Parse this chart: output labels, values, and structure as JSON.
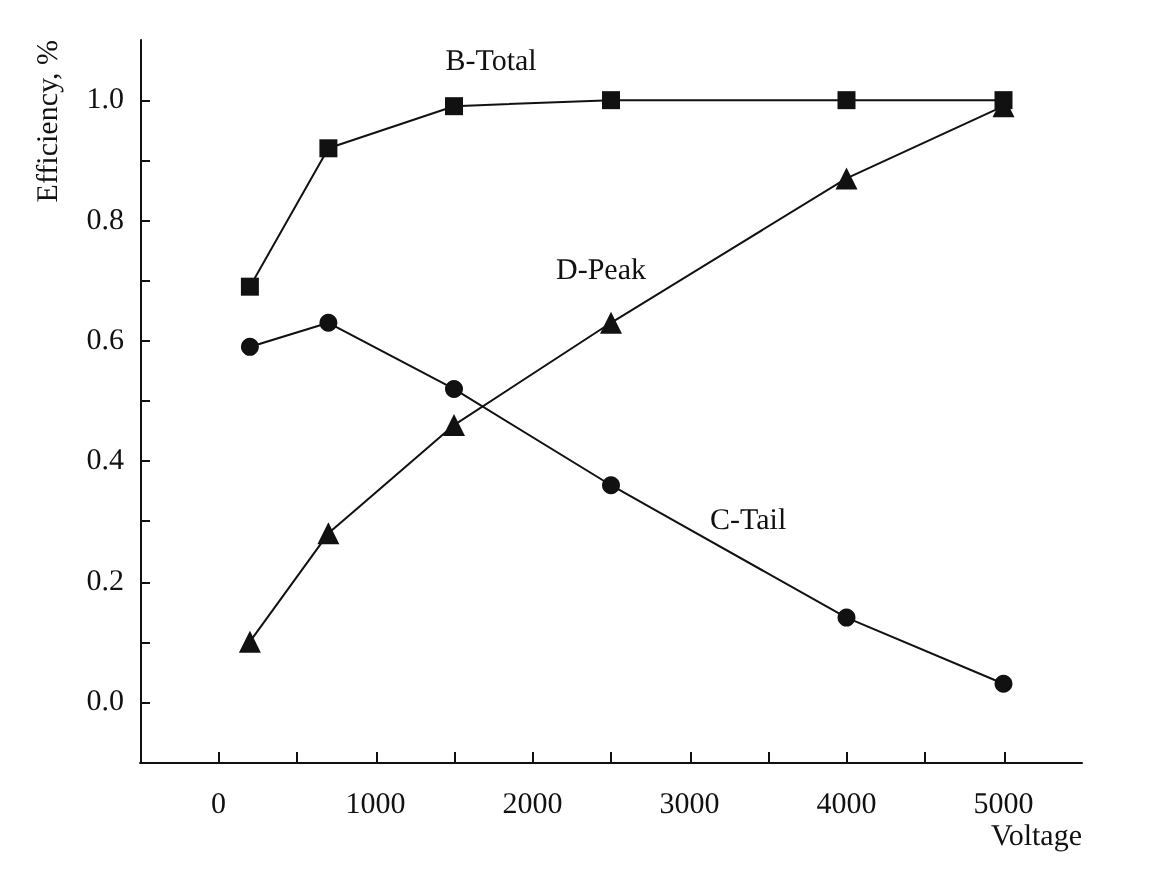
{
  "chart_data": {
    "type": "line",
    "xlabel": "Voltage",
    "ylabel": "Efficiency, %",
    "x": [
      200,
      700,
      1500,
      2500,
      4000,
      5000
    ],
    "series": [
      {
        "name": "B-Total",
        "color": "#111111",
        "marker": "square",
        "values": [
          0.69,
          0.92,
          0.99,
          1.0,
          1.0,
          1.0
        ]
      },
      {
        "name": "C-Tail",
        "color": "#111111",
        "marker": "circle",
        "values": [
          0.59,
          0.63,
          0.52,
          0.36,
          0.14,
          0.03
        ]
      },
      {
        "name": "D-Peak",
        "color": "#111111",
        "marker": "triangle",
        "values": [
          0.1,
          0.28,
          0.46,
          0.63,
          0.87,
          0.99
        ]
      }
    ],
    "xlim": [
      -500,
      5500
    ],
    "xticks": [
      0,
      {
        "value": 500,
        "label": null
      },
      1000,
      {
        "value": 1500,
        "label": null
      },
      2000,
      {
        "value": 2500,
        "label": null
      },
      3000,
      {
        "value": 3500,
        "label": null
      },
      4000,
      {
        "value": 4500,
        "label": null
      },
      5000
    ],
    "ylim": [
      -0.1,
      1.1
    ],
    "yticks": [
      {
        "value": 0,
        "label": "0.0"
      },
      {
        "value": 0.1,
        "label": null
      },
      0.2,
      {
        "value": 0.3,
        "label": null
      },
      0.4,
      {
        "value": 0.5,
        "label": null
      },
      0.6,
      {
        "value": 0.7,
        "label": null
      },
      0.8,
      {
        "value": 0.9,
        "label": null
      },
      {
        "value": 1.0,
        "label": "1.0"
      }
    ],
    "grid": false,
    "legend": false,
    "line_style": "solid"
  }
}
